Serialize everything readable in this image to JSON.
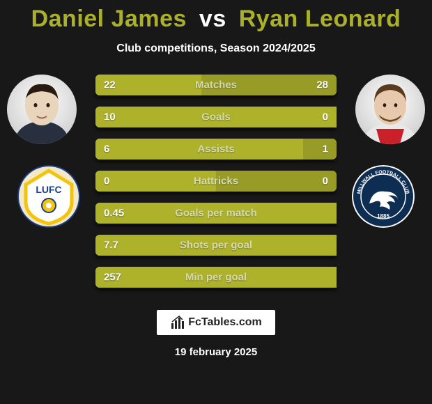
{
  "title": {
    "player1": "Daniel James",
    "vs": "vs",
    "player2": "Ryan Leonard"
  },
  "subtitle": "Club competitions, Season 2024/2025",
  "stats": {
    "bar_color": "#aeb22b",
    "bar_darker": "#989c26",
    "label_color": "#d6d9b0",
    "rows": [
      {
        "label": "Matches",
        "left": "22",
        "right": "28",
        "left_pct": 44,
        "right_pct": 56
      },
      {
        "label": "Goals",
        "left": "10",
        "right": "0",
        "left_pct": 100,
        "right_pct": 0
      },
      {
        "label": "Assists",
        "left": "6",
        "right": "1",
        "left_pct": 86,
        "right_pct": 14
      },
      {
        "label": "Hattricks",
        "left": "0",
        "right": "0",
        "left_pct": 50,
        "right_pct": 50
      },
      {
        "label": "Goals per match",
        "left": "0.45",
        "right": "",
        "left_pct": 100,
        "right_pct": 0
      },
      {
        "label": "Shots per goal",
        "left": "7.7",
        "right": "",
        "left_pct": 100,
        "right_pct": 0
      },
      {
        "label": "Min per goal",
        "left": "257",
        "right": "",
        "left_pct": 100,
        "right_pct": 0
      }
    ]
  },
  "footer": {
    "brand": "FcTables.com",
    "date": "19 february 2025"
  },
  "colors": {
    "background": "#181818",
    "accent": "#abb02a"
  }
}
